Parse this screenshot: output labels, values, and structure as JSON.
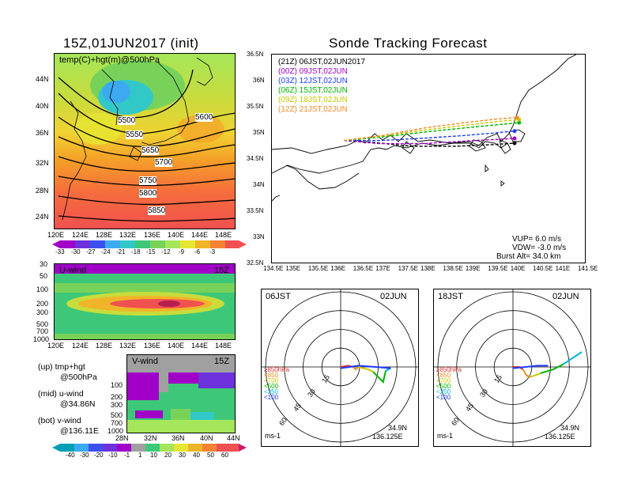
{
  "left_top": {
    "title": "15Z,01JUN2017 (init)",
    "label": "temp(C)+hgt(m)@500hPa",
    "lat_ticks": [
      "44N",
      "40N",
      "36N",
      "32N",
      "28N",
      "24N"
    ],
    "lon_ticks": [
      "120E",
      "124E",
      "128E",
      "132E",
      "136E",
      "140E",
      "144E",
      "148E"
    ],
    "contours": [
      "5500",
      "5550",
      "5600",
      "5650",
      "5700",
      "5750",
      "5800",
      "5850"
    ],
    "colorbar_ticks": [
      "-33",
      "-30",
      "-27",
      "-24",
      "-21",
      "-18",
      "-15",
      "-12",
      "-9",
      "-6",
      "-3"
    ]
  },
  "uwind": {
    "label": "U-wind",
    "time": "15Z",
    "p_ticks": [
      "30",
      "50",
      "100",
      "200",
      "300",
      "500",
      "700",
      "1000"
    ],
    "lon_ticks": [
      "120E",
      "124E",
      "128E",
      "132E",
      "136E",
      "140E",
      "144E",
      "148E"
    ]
  },
  "vwind": {
    "label": "V-wind",
    "time": "15Z",
    "p_ticks": [
      "100",
      "200",
      "300",
      "500",
      "700",
      "1000"
    ],
    "lat_ticks": [
      "28N",
      "32N",
      "36N",
      "40N",
      "44N"
    ],
    "colorbar_ticks": [
      "-40",
      "-30",
      "-20",
      "-10",
      "-1",
      "1",
      "10",
      "20",
      "30",
      "40",
      "50",
      "60"
    ]
  },
  "notes": {
    "up": "(up)  tmp+hgt",
    "up2": "@500hPa",
    "mid": "(mid) u-wind",
    "mid2": "@34.86N",
    "bot": "(bot) v-wind",
    "bot2": "@136.11E"
  },
  "chart_data": [
    {
      "type": "line",
      "title": "Sonde Tracking Forecast",
      "xlabel": "",
      "ylabel": "",
      "xlim": [
        134.5,
        141.5
      ],
      "ylim": [
        32.5,
        36.5
      ],
      "x_ticks": [
        "134.5E",
        "135E",
        "135.5E",
        "136E",
        "136.5E",
        "137E",
        "137.5E",
        "138E",
        "138.5E",
        "139E",
        "139.5E",
        "140E",
        "140.5E",
        "141E",
        "141.5E"
      ],
      "y_ticks": [
        "36.5N",
        "36N",
        "35.5N",
        "35N",
        "34.5N",
        "34N",
        "33.5N",
        "33N",
        "32.5N"
      ],
      "legend": [
        {
          "text": "(21Z)  06JST,02JUN2017",
          "color": "#000000"
        },
        {
          "text": "(00Z)  09JST,02JUN",
          "color": "#a000c8"
        },
        {
          "text": "(03Z)  12JST,02JUN",
          "color": "#1e3cff"
        },
        {
          "text": "(06Z)  15JST,02JUN",
          "color": "#00b400"
        },
        {
          "text": "(09Z)  18JST,02JUN",
          "color": "#c8c800"
        },
        {
          "text": "(12Z)  21JST,02JUN",
          "color": "#f08c28"
        }
      ],
      "series": [
        {
          "color": "#000000",
          "x": [
            136.1,
            136.8,
            137.6,
            138.6,
            139.4,
            139.9
          ],
          "y": [
            34.86,
            34.82,
            34.75,
            34.75,
            34.78,
            34.81
          ]
        },
        {
          "color": "#a000c8",
          "x": [
            136.1,
            136.9,
            137.9,
            138.8,
            139.5,
            139.9
          ],
          "y": [
            34.86,
            34.8,
            34.8,
            34.85,
            34.88,
            34.9
          ]
        },
        {
          "color": "#1e3cff",
          "x": [
            136.1,
            136.9,
            137.8,
            138.7,
            139.4,
            139.9
          ],
          "y": [
            34.86,
            34.86,
            34.9,
            34.95,
            35.0,
            35.04
          ]
        },
        {
          "color": "#00b400",
          "x": [
            136.1,
            137.0,
            137.9,
            138.8,
            139.5,
            140.0
          ],
          "y": [
            34.86,
            34.93,
            35.02,
            35.1,
            35.16,
            35.2
          ]
        },
        {
          "color": "#c8c800",
          "x": [
            136.1,
            137.0,
            137.9,
            138.8,
            139.5,
            140.0
          ],
          "y": [
            34.86,
            34.95,
            35.06,
            35.15,
            35.22,
            35.26
          ]
        },
        {
          "color": "#f08c28",
          "x": [
            136.1,
            137.0,
            137.9,
            138.8,
            139.5,
            139.95
          ],
          "y": [
            34.86,
            34.96,
            35.1,
            35.2,
            35.27,
            35.3
          ]
        }
      ],
      "annotation": [
        "VUP=  6.0 m/s",
        "VDW= -3.0 m/s",
        "Burst Alt=  34.0 km"
      ]
    },
    {
      "type": "scatter",
      "title": "06JST",
      "date": "02JUN",
      "rings": [
        "15",
        "30",
        "45",
        "60"
      ],
      "legend": [
        {
          "text": "≥850hPa",
          "color": "#dc3232"
        },
        {
          "text": "<850",
          "color": "#f08c28"
        },
        {
          "text": "<700",
          "color": "#c8c800"
        },
        {
          "text": "<500",
          "color": "#00b400"
        },
        {
          "text": "<250",
          "color": "#00b4dc"
        },
        {
          "text": "<100",
          "color": "#1e3cff"
        }
      ],
      "series": [
        {
          "color": "#dc3232",
          "x": [
            0,
            6,
            10
          ],
          "y": [
            0,
            1,
            0
          ]
        },
        {
          "color": "#f08c28",
          "x": [
            10,
            12,
            14
          ],
          "y": [
            0,
            -2,
            0
          ]
        },
        {
          "color": "#c8c800",
          "x": [
            14,
            22,
            26
          ],
          "y": [
            0,
            -2,
            -4
          ]
        },
        {
          "color": "#00b400",
          "x": [
            26,
            34,
            36
          ],
          "y": [
            -4,
            -12,
            -3
          ]
        },
        {
          "color": "#00b4dc",
          "x": [
            36,
            40
          ],
          "y": [
            -3,
            -1
          ]
        },
        {
          "color": "#1e3cff",
          "x": [
            40,
            28,
            14,
            0
          ],
          "y": [
            -1,
            0,
            1,
            -1
          ]
        }
      ],
      "unit": "ms-1",
      "location": [
        "34.9N",
        "136.125E"
      ]
    },
    {
      "type": "scatter",
      "title": "18JST",
      "date": "02JUN",
      "rings": [
        "15",
        "30",
        "45",
        "60"
      ],
      "legend": [
        {
          "text": "≥850hPa",
          "color": "#dc3232"
        },
        {
          "text": "<850",
          "color": "#f08c28"
        },
        {
          "text": "<700",
          "color": "#c8c800"
        },
        {
          "text": "<500",
          "color": "#00b400"
        },
        {
          "text": "<250",
          "color": "#00b4dc"
        },
        {
          "text": "<100",
          "color": "#1e3cff"
        }
      ],
      "series": [
        {
          "color": "#dc3232",
          "x": [
            0,
            5,
            8
          ],
          "y": [
            0,
            0,
            -2
          ]
        },
        {
          "color": "#f08c28",
          "x": [
            8,
            11,
            14
          ],
          "y": [
            -2,
            -7,
            -8
          ]
        },
        {
          "color": "#c8c800",
          "x": [
            14,
            22
          ],
          "y": [
            -8,
            -5
          ]
        },
        {
          "color": "#00b400",
          "x": [
            22,
            32,
            40
          ],
          "y": [
            -5,
            -2,
            2
          ]
        },
        {
          "color": "#00b4dc",
          "x": [
            40,
            55
          ],
          "y": [
            2,
            12
          ]
        },
        {
          "color": "#1e3cff",
          "x": [
            0,
            10,
            20,
            28
          ],
          "y": [
            -1,
            0,
            1,
            1
          ]
        }
      ],
      "unit": "ms-1",
      "location": [
        "34.9N",
        "136.125E"
      ]
    }
  ]
}
